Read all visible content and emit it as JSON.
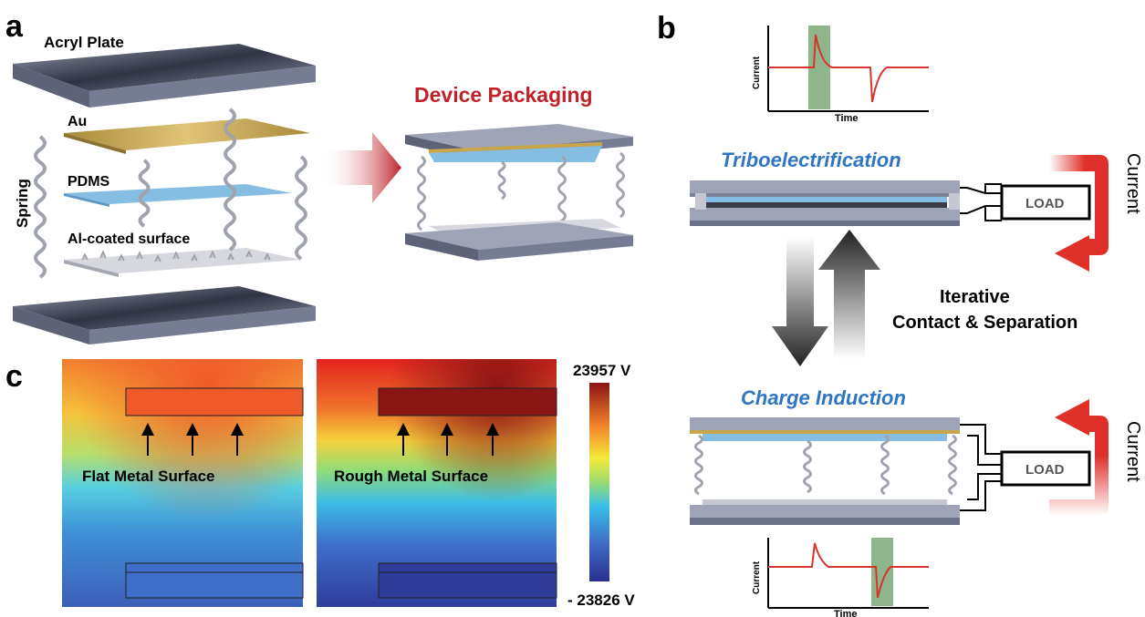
{
  "panel_letters": {
    "a": "a",
    "b": "b",
    "c": "c"
  },
  "panel_a": {
    "acryl": "Acryl Plate",
    "au": "Au",
    "pdms": "PDMS",
    "spring": "Spring",
    "al": "Al-coated surface",
    "packaging": "Device Packaging"
  },
  "panel_b": {
    "tribo": "Triboelectrification",
    "induction": "Charge Induction",
    "load_top": "LOAD",
    "load_bottom": "LOAD",
    "current_top": "Current",
    "current_bottom": "Current",
    "iterative_1": "Iterative",
    "iterative_2": "Contact & Separation",
    "top_plot": {
      "ylabel": "Current",
      "xlabel": "Time"
    },
    "bottom_plot": {
      "ylabel": "Current",
      "xlabel": "Time"
    }
  },
  "panel_c": {
    "flat": "Flat Metal Surface",
    "rough": "Rough Metal Surface",
    "colorbar_max": "23957 V",
    "colorbar_min": "- 23826 V"
  },
  "colors": {
    "accent_red": "#c0222a",
    "title_blue": "#2f75c4",
    "plate_gray": "#7b8196",
    "gold": "#c9a64a",
    "pdms_blue": "#7fb8e0",
    "signal_red": "#d9342b",
    "highlight_green": "#8fb58a"
  }
}
